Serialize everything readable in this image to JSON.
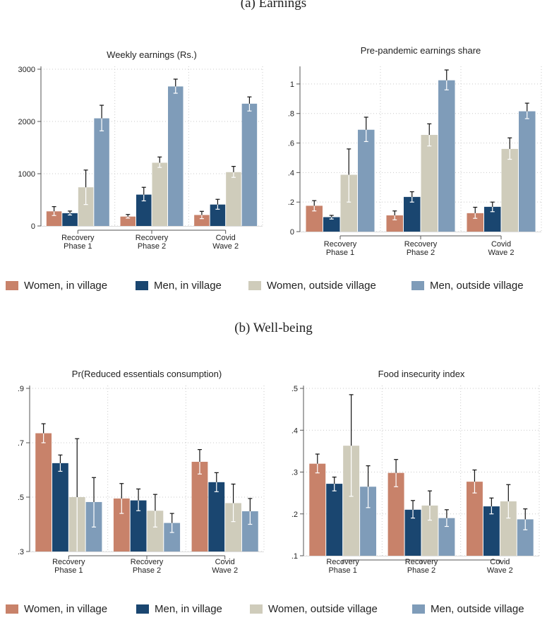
{
  "sections": {
    "a_title": "(a) Earnings",
    "b_title": "(b) Well-being"
  },
  "colors": {
    "women_in_village": "#c8826a",
    "men_in_village": "#1a4670",
    "women_outside_village": "#cfccbb",
    "men_outside_village": "#7f9cb9",
    "plot_bg": "#ffffff",
    "grid": "#c9c9c9",
    "axis": "#555555",
    "errorbar_dark": "#111111",
    "errorbar_light": "#ffffff"
  },
  "legend": {
    "items": [
      {
        "label": "Women, in village",
        "color_key": "women_in_village"
      },
      {
        "label": "Men, in village",
        "color_key": "men_in_village"
      },
      {
        "label": "Women, outside village",
        "color_key": "women_outside_village"
      },
      {
        "label": "Men, outside village",
        "color_key": "men_outside_village"
      }
    ]
  },
  "chart_data": [
    {
      "id": "weekly-earnings",
      "type": "bar",
      "title": "Weekly earnings (Rs.)",
      "categories": [
        [
          "Recovery",
          "Phase 1"
        ],
        [
          "Recovery",
          "Phase 2"
        ],
        [
          "Covid",
          "Wave 2"
        ]
      ],
      "yticks": [
        0,
        1000,
        2000,
        3000
      ],
      "ytick_labels": [
        "0",
        "1000",
        "2000",
        "3000"
      ],
      "ylim": [
        0,
        3000
      ],
      "xlabel": "",
      "ylabel": "",
      "series": [
        {
          "name": "Women, in village",
          "values": [
            280,
            180,
            210
          ],
          "ci_low": [
            200,
            150,
            140
          ],
          "ci_high": [
            370,
            220,
            280
          ]
        },
        {
          "name": "Men, in village",
          "values": [
            245,
            600,
            410
          ],
          "ci_low": [
            210,
            480,
            320
          ],
          "ci_high": [
            285,
            740,
            510
          ]
        },
        {
          "name": "Women, outside village",
          "values": [
            740,
            1210,
            1030
          ],
          "ci_low": [
            410,
            1120,
            930
          ],
          "ci_high": [
            1070,
            1320,
            1140
          ]
        },
        {
          "name": "Men, outside village",
          "values": [
            2060,
            2670,
            2340
          ],
          "ci_low": [
            1820,
            2540,
            2200
          ],
          "ci_high": [
            2310,
            2810,
            2470
          ]
        }
      ]
    },
    {
      "id": "pre-pandemic-share",
      "type": "bar",
      "title": "Pre-pandemic earnings share",
      "categories": [
        [
          "Recovery",
          "Phase 1"
        ],
        [
          "Recovery",
          "Phase 2"
        ],
        [
          "Covid",
          "Wave 2"
        ]
      ],
      "yticks": [
        0,
        0.2,
        0.4,
        0.6,
        0.8,
        1.0
      ],
      "ytick_labels": [
        "0",
        ".2",
        ".4",
        ".6",
        ".8",
        "1"
      ],
      "ylim": [
        0,
        1.1
      ],
      "xlabel": "",
      "ylabel": "",
      "series": [
        {
          "name": "Women, in village",
          "values": [
            0.175,
            0.11,
            0.125
          ],
          "ci_low": [
            0.14,
            0.08,
            0.09
          ],
          "ci_high": [
            0.21,
            0.14,
            0.165
          ]
        },
        {
          "name": "Men, in village",
          "values": [
            0.098,
            0.235,
            0.168
          ],
          "ci_low": [
            0.085,
            0.2,
            0.135
          ],
          "ci_high": [
            0.11,
            0.27,
            0.2
          ]
        },
        {
          "name": "Women, outside village",
          "values": [
            0.385,
            0.655,
            0.56
          ],
          "ci_low": [
            0.2,
            0.58,
            0.49
          ],
          "ci_high": [
            0.56,
            0.73,
            0.635
          ]
        },
        {
          "name": "Men, outside village",
          "values": [
            0.69,
            1.025,
            0.815
          ],
          "ci_low": [
            0.61,
            0.96,
            0.765
          ],
          "ci_high": [
            0.775,
            1.095,
            0.87
          ]
        }
      ]
    },
    {
      "id": "reduced-essentials",
      "type": "bar",
      "title": "Pr(Reduced essentials consumption)",
      "categories": [
        [
          "Recovery",
          "Phase 1"
        ],
        [
          "Recovery",
          "Phase 2"
        ],
        [
          "Covid",
          "Wave 2"
        ]
      ],
      "yticks": [
        0.3,
        0.5,
        0.7,
        0.9
      ],
      "ytick_labels": [
        ".3",
        ".5",
        ".7",
        ".9"
      ],
      "ylim": [
        0.3,
        0.9
      ],
      "xlabel": "",
      "ylabel": "",
      "series": [
        {
          "name": "Women, in village",
          "values": [
            0.735,
            0.495,
            0.63
          ],
          "ci_low": [
            0.7,
            0.44,
            0.585
          ],
          "ci_high": [
            0.77,
            0.55,
            0.675
          ]
        },
        {
          "name": "Men, in village",
          "values": [
            0.625,
            0.488,
            0.555
          ],
          "ci_low": [
            0.595,
            0.45,
            0.52
          ],
          "ci_high": [
            0.655,
            0.53,
            0.59
          ]
        },
        {
          "name": "Women, outside village",
          "values": [
            0.5,
            0.45,
            0.478
          ],
          "ci_low": [
            0.285,
            0.39,
            0.41
          ],
          "ci_high": [
            0.715,
            0.51,
            0.548
          ]
        },
        {
          "name": "Men, outside village",
          "values": [
            0.482,
            0.405,
            0.448
          ],
          "ci_low": [
            0.39,
            0.37,
            0.4
          ],
          "ci_high": [
            0.572,
            0.44,
            0.495
          ]
        }
      ]
    },
    {
      "id": "food-insecurity",
      "type": "bar",
      "title": "Food insecurity index",
      "categories": [
        [
          "Recovery",
          "Phase 1"
        ],
        [
          "Recovery",
          "Phase 2"
        ],
        [
          "Covid",
          "Wave 2"
        ]
      ],
      "yticks": [
        0.1,
        0.2,
        0.3,
        0.4,
        0.5
      ],
      "ytick_labels": [
        ".1",
        ".2",
        ".3",
        ".4",
        ".5"
      ],
      "ylim": [
        0.1,
        0.5
      ],
      "xlabel": "",
      "ylabel": "",
      "series": [
        {
          "name": "Women, in village",
          "values": [
            0.32,
            0.298,
            0.277
          ],
          "ci_low": [
            0.298,
            0.265,
            0.25
          ],
          "ci_high": [
            0.343,
            0.33,
            0.305
          ]
        },
        {
          "name": "Men, in village",
          "values": [
            0.272,
            0.21,
            0.218
          ],
          "ci_low": [
            0.255,
            0.19,
            0.2
          ],
          "ci_high": [
            0.288,
            0.232,
            0.238
          ]
        },
        {
          "name": "Women, outside village",
          "values": [
            0.363,
            0.22,
            0.23
          ],
          "ci_low": [
            0.242,
            0.185,
            0.19
          ],
          "ci_high": [
            0.485,
            0.255,
            0.27
          ]
        },
        {
          "name": "Men, outside village",
          "values": [
            0.265,
            0.19,
            0.187
          ],
          "ci_low": [
            0.215,
            0.17,
            0.162
          ],
          "ci_high": [
            0.315,
            0.21,
            0.212
          ]
        }
      ]
    }
  ]
}
